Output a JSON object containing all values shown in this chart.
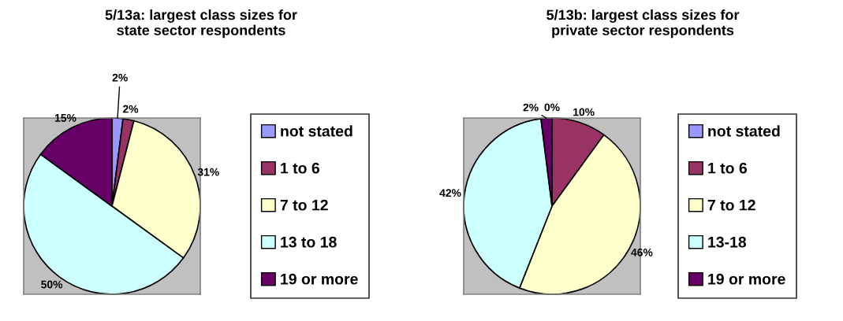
{
  "chart_data": [
    {
      "type": "pie",
      "title": "5/13a: largest class sizes for\nstate sector respondents",
      "categories": [
        "not stated",
        "1 to 6",
        "7 to 12",
        "13 to 18",
        "19 or more"
      ],
      "values": [
        2,
        2,
        31,
        50,
        15
      ],
      "colors": [
        "#9999ff",
        "#993366",
        "#ffffcc",
        "#ccffff",
        "#660066"
      ],
      "value_labels": [
        "2%",
        "2%",
        "31%",
        "50%",
        "15%"
      ],
      "legend": "right"
    },
    {
      "type": "pie",
      "title": "5/13b: largest class sizes for\nprivate sector respondents",
      "categories": [
        "not stated",
        "1 to 6",
        "7 to 12",
        "13-18",
        "19 or more"
      ],
      "values": [
        0,
        10,
        46,
        42,
        2
      ],
      "colors": [
        "#9999ff",
        "#993366",
        "#ffffcc",
        "#ccffff",
        "#660066"
      ],
      "value_labels": [
        "0%",
        "10%",
        "46%",
        "42%",
        "2%"
      ],
      "legend": "right"
    }
  ]
}
